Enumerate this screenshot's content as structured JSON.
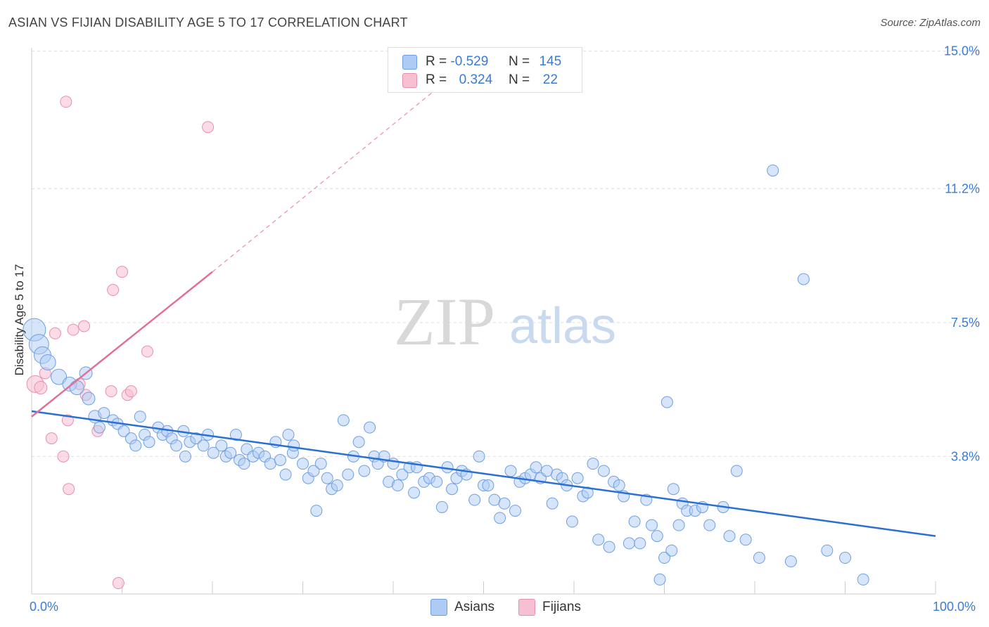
{
  "title": "ASIAN VS FIJIAN DISABILITY AGE 5 TO 17 CORRELATION CHART",
  "source": "Source: ZipAtlas.com",
  "watermark": {
    "zip": "ZIP",
    "atlas": "atlas"
  },
  "legend": {
    "row1": {
      "r_label": "R =",
      "r_value": "-0.529",
      "n_label": "N =",
      "n_value": "145"
    },
    "row2": {
      "r_label": "R =",
      "r_value": "0.324",
      "n_label": "N =",
      "n_value": "22"
    }
  },
  "colors": {
    "asian_fill": "#aecbf5",
    "asian_stroke": "#6f9fe0",
    "asian_line": "#2a6fd4",
    "fijian_fill": "#f7c0d2",
    "fijian_stroke": "#e98fae",
    "fijian_line": "#e0709a",
    "tick_label": "#3a7bd5",
    "grid": "#dddddd"
  },
  "chart_data": {
    "type": "scatter",
    "title": "ASIAN VS FIJIAN DISABILITY AGE 5 TO 17 CORRELATION CHART",
    "xlabel": "",
    "ylabel": "Disability Age 5 to 17",
    "xlim": [
      0,
      100
    ],
    "ylim": [
      0,
      15.5
    ],
    "x_tick_labels": [
      "0.0%",
      "100.0%"
    ],
    "y_ticks": [
      3.8,
      7.5,
      11.2,
      15.0
    ],
    "y_tick_labels": [
      "3.8%",
      "7.5%",
      "11.2%",
      "15.0%"
    ],
    "grid": "horizontal dashed",
    "legend_position": "top-center and bottom",
    "series": [
      {
        "name": "Asians",
        "r": -0.529,
        "n": 145,
        "trend": {
          "x": [
            0,
            100
          ],
          "y": [
            5.05,
            1.6
          ]
        },
        "points": [
          [
            0.3,
            7.3,
            16
          ],
          [
            0.8,
            6.9,
            14
          ],
          [
            1.2,
            6.6,
            12
          ],
          [
            1.8,
            6.4,
            11
          ],
          [
            3,
            6.0,
            11
          ],
          [
            4.2,
            5.8,
            10
          ],
          [
            5,
            5.7,
            10
          ],
          [
            6,
            6.1,
            9
          ],
          [
            6.3,
            5.4,
            9
          ],
          [
            7,
            4.9,
            9
          ],
          [
            7.5,
            4.6,
            8
          ],
          [
            8,
            5.0,
            8
          ],
          [
            9,
            4.8,
            8
          ],
          [
            9.5,
            4.7,
            8
          ],
          [
            10.2,
            4.5,
            8
          ],
          [
            11,
            4.3,
            8
          ],
          [
            11.5,
            4.1,
            8
          ],
          [
            12,
            4.9,
            8
          ],
          [
            12.5,
            4.4,
            8
          ],
          [
            13,
            4.2,
            8
          ],
          [
            14,
            4.6,
            8
          ],
          [
            14.5,
            4.4,
            8
          ],
          [
            15,
            4.5,
            8
          ],
          [
            15.5,
            4.3,
            8
          ],
          [
            16,
            4.1,
            8
          ],
          [
            16.8,
            4.5,
            8
          ],
          [
            17,
            3.8,
            8
          ],
          [
            17.5,
            4.2,
            8
          ],
          [
            18.2,
            4.3,
            8
          ],
          [
            19,
            4.1,
            8
          ],
          [
            19.5,
            4.4,
            8
          ],
          [
            20.1,
            3.9,
            8
          ],
          [
            21,
            4.1,
            8
          ],
          [
            21.5,
            3.8,
            8
          ],
          [
            22,
            3.9,
            8
          ],
          [
            22.6,
            4.4,
            8
          ],
          [
            23,
            3.7,
            8
          ],
          [
            23.5,
            3.6,
            8
          ],
          [
            23.8,
            4.0,
            8
          ],
          [
            24.5,
            3.8,
            8
          ],
          [
            25.1,
            3.9,
            8
          ],
          [
            25.8,
            3.8,
            8
          ],
          [
            26.4,
            3.6,
            8
          ],
          [
            27,
            4.2,
            8
          ],
          [
            27.5,
            3.7,
            8
          ],
          [
            28.1,
            3.3,
            8
          ],
          [
            28.9,
            3.9,
            8
          ],
          [
            28.4,
            4.4,
            8
          ],
          [
            29,
            4.1,
            8
          ],
          [
            30,
            3.6,
            8
          ],
          [
            30.6,
            3.2,
            8
          ],
          [
            31.2,
            3.4,
            8
          ],
          [
            31.5,
            2.3,
            8
          ],
          [
            32,
            3.6,
            8
          ],
          [
            32.7,
            3.2,
            8
          ],
          [
            33.2,
            2.9,
            8
          ],
          [
            33.8,
            3.0,
            8
          ],
          [
            34.5,
            4.8,
            8
          ],
          [
            35,
            3.3,
            8
          ],
          [
            35.6,
            3.8,
            8
          ],
          [
            36.2,
            4.2,
            8
          ],
          [
            36.8,
            3.4,
            8
          ],
          [
            37.4,
            4.6,
            8
          ],
          [
            37.9,
            3.8,
            8
          ],
          [
            38.3,
            3.6,
            8
          ],
          [
            39,
            3.8,
            8
          ],
          [
            39.5,
            3.1,
            8
          ],
          [
            40,
            3.6,
            8
          ],
          [
            40.5,
            3.0,
            8
          ],
          [
            41,
            3.3,
            8
          ],
          [
            41.8,
            3.5,
            8
          ],
          [
            42.3,
            2.8,
            8
          ],
          [
            42.6,
            3.5,
            8
          ],
          [
            43.4,
            3.1,
            8
          ],
          [
            44,
            3.2,
            8
          ],
          [
            44.8,
            3.1,
            8
          ],
          [
            45.4,
            2.4,
            8
          ],
          [
            46,
            3.5,
            8
          ],
          [
            46.5,
            2.9,
            8
          ],
          [
            47,
            3.2,
            8
          ],
          [
            47.6,
            3.4,
            8
          ],
          [
            48.1,
            3.3,
            8
          ],
          [
            49,
            2.6,
            8
          ],
          [
            49.5,
            3.8,
            8
          ],
          [
            50,
            3.0,
            8
          ],
          [
            50.5,
            3.0,
            8
          ],
          [
            51.2,
            2.6,
            8
          ],
          [
            51.8,
            2.1,
            8
          ],
          [
            52.3,
            2.5,
            8
          ],
          [
            53,
            3.4,
            8
          ],
          [
            53.5,
            2.3,
            8
          ],
          [
            54,
            3.1,
            8
          ],
          [
            54.6,
            3.2,
            8
          ],
          [
            55.2,
            3.3,
            8
          ],
          [
            55.8,
            3.5,
            8
          ],
          [
            56.3,
            3.2,
            8
          ],
          [
            57,
            3.4,
            8
          ],
          [
            57.6,
            2.5,
            8
          ],
          [
            58.1,
            3.3,
            8
          ],
          [
            58.7,
            3.2,
            8
          ],
          [
            59.2,
            3.0,
            8
          ],
          [
            59.8,
            2.0,
            8
          ],
          [
            60.4,
            3.2,
            8
          ],
          [
            61,
            2.7,
            8
          ],
          [
            61.5,
            2.8,
            8
          ],
          [
            62.1,
            3.6,
            8
          ],
          [
            62.7,
            1.5,
            8
          ],
          [
            63.3,
            3.4,
            8
          ],
          [
            63.9,
            1.3,
            8
          ],
          [
            64.4,
            3.1,
            8
          ],
          [
            65,
            3.0,
            8
          ],
          [
            65.5,
            2.7,
            8
          ],
          [
            66.1,
            1.4,
            8
          ],
          [
            66.7,
            2.0,
            8
          ],
          [
            67.3,
            1.4,
            8
          ],
          [
            68,
            2.6,
            8
          ],
          [
            68.6,
            1.9,
            8
          ],
          [
            69.2,
            1.6,
            8
          ],
          [
            69.5,
            0.4,
            8
          ],
          [
            70,
            1.0,
            8
          ],
          [
            70.3,
            5.3,
            8
          ],
          [
            71,
            2.9,
            8
          ],
          [
            71.6,
            1.9,
            8
          ],
          [
            72,
            2.5,
            8
          ],
          [
            72.5,
            2.3,
            8
          ],
          [
            73.4,
            2.3,
            8
          ],
          [
            74.2,
            2.4,
            8
          ],
          [
            75,
            1.9,
            8
          ],
          [
            76.5,
            2.4,
            8
          ],
          [
            77.2,
            1.6,
            8
          ],
          [
            78,
            3.4,
            8
          ],
          [
            79,
            1.5,
            8
          ],
          [
            80.5,
            1.0,
            8
          ],
          [
            82,
            11.7,
            8
          ],
          [
            84,
            0.9,
            8
          ],
          [
            85.4,
            8.7,
            8
          ],
          [
            88,
            1.2,
            8
          ],
          [
            90,
            1.0,
            8
          ],
          [
            92,
            0.4,
            8
          ],
          [
            70.8,
            1.2,
            8
          ]
        ]
      },
      {
        "name": "Fijians",
        "r": 0.324,
        "n": 22,
        "trend": {
          "x": [
            0,
            20
          ],
          "y": [
            4.9,
            8.9
          ]
        },
        "trend_extended": {
          "x": [
            20,
            46
          ],
          "y": [
            8.9,
            14.2
          ]
        },
        "points": [
          [
            0.4,
            5.8,
            12
          ],
          [
            1,
            5.7,
            9
          ],
          [
            1.5,
            6.1,
            8
          ],
          [
            2.2,
            4.3,
            8
          ],
          [
            3.5,
            3.8,
            8
          ],
          [
            4.1,
            2.9,
            8
          ],
          [
            4.6,
            7.3,
            8
          ],
          [
            5.3,
            5.8,
            8
          ],
          [
            5.8,
            7.4,
            8
          ],
          [
            6,
            5.5,
            8
          ],
          [
            7.3,
            4.5,
            8
          ],
          [
            8.8,
            5.6,
            8
          ],
          [
            9,
            8.4,
            8
          ],
          [
            9.6,
            0.3,
            8
          ],
          [
            10,
            8.9,
            8
          ],
          [
            10.6,
            5.5,
            8
          ],
          [
            11,
            5.6,
            8
          ],
          [
            12.8,
            6.7,
            8
          ],
          [
            4,
            4.8,
            8
          ],
          [
            2.6,
            7.2,
            8
          ],
          [
            3.8,
            13.6,
            8
          ],
          [
            19.5,
            12.9,
            8
          ]
        ]
      }
    ]
  },
  "bottom_legend": {
    "asians": "Asians",
    "fijians": "Fijians"
  }
}
